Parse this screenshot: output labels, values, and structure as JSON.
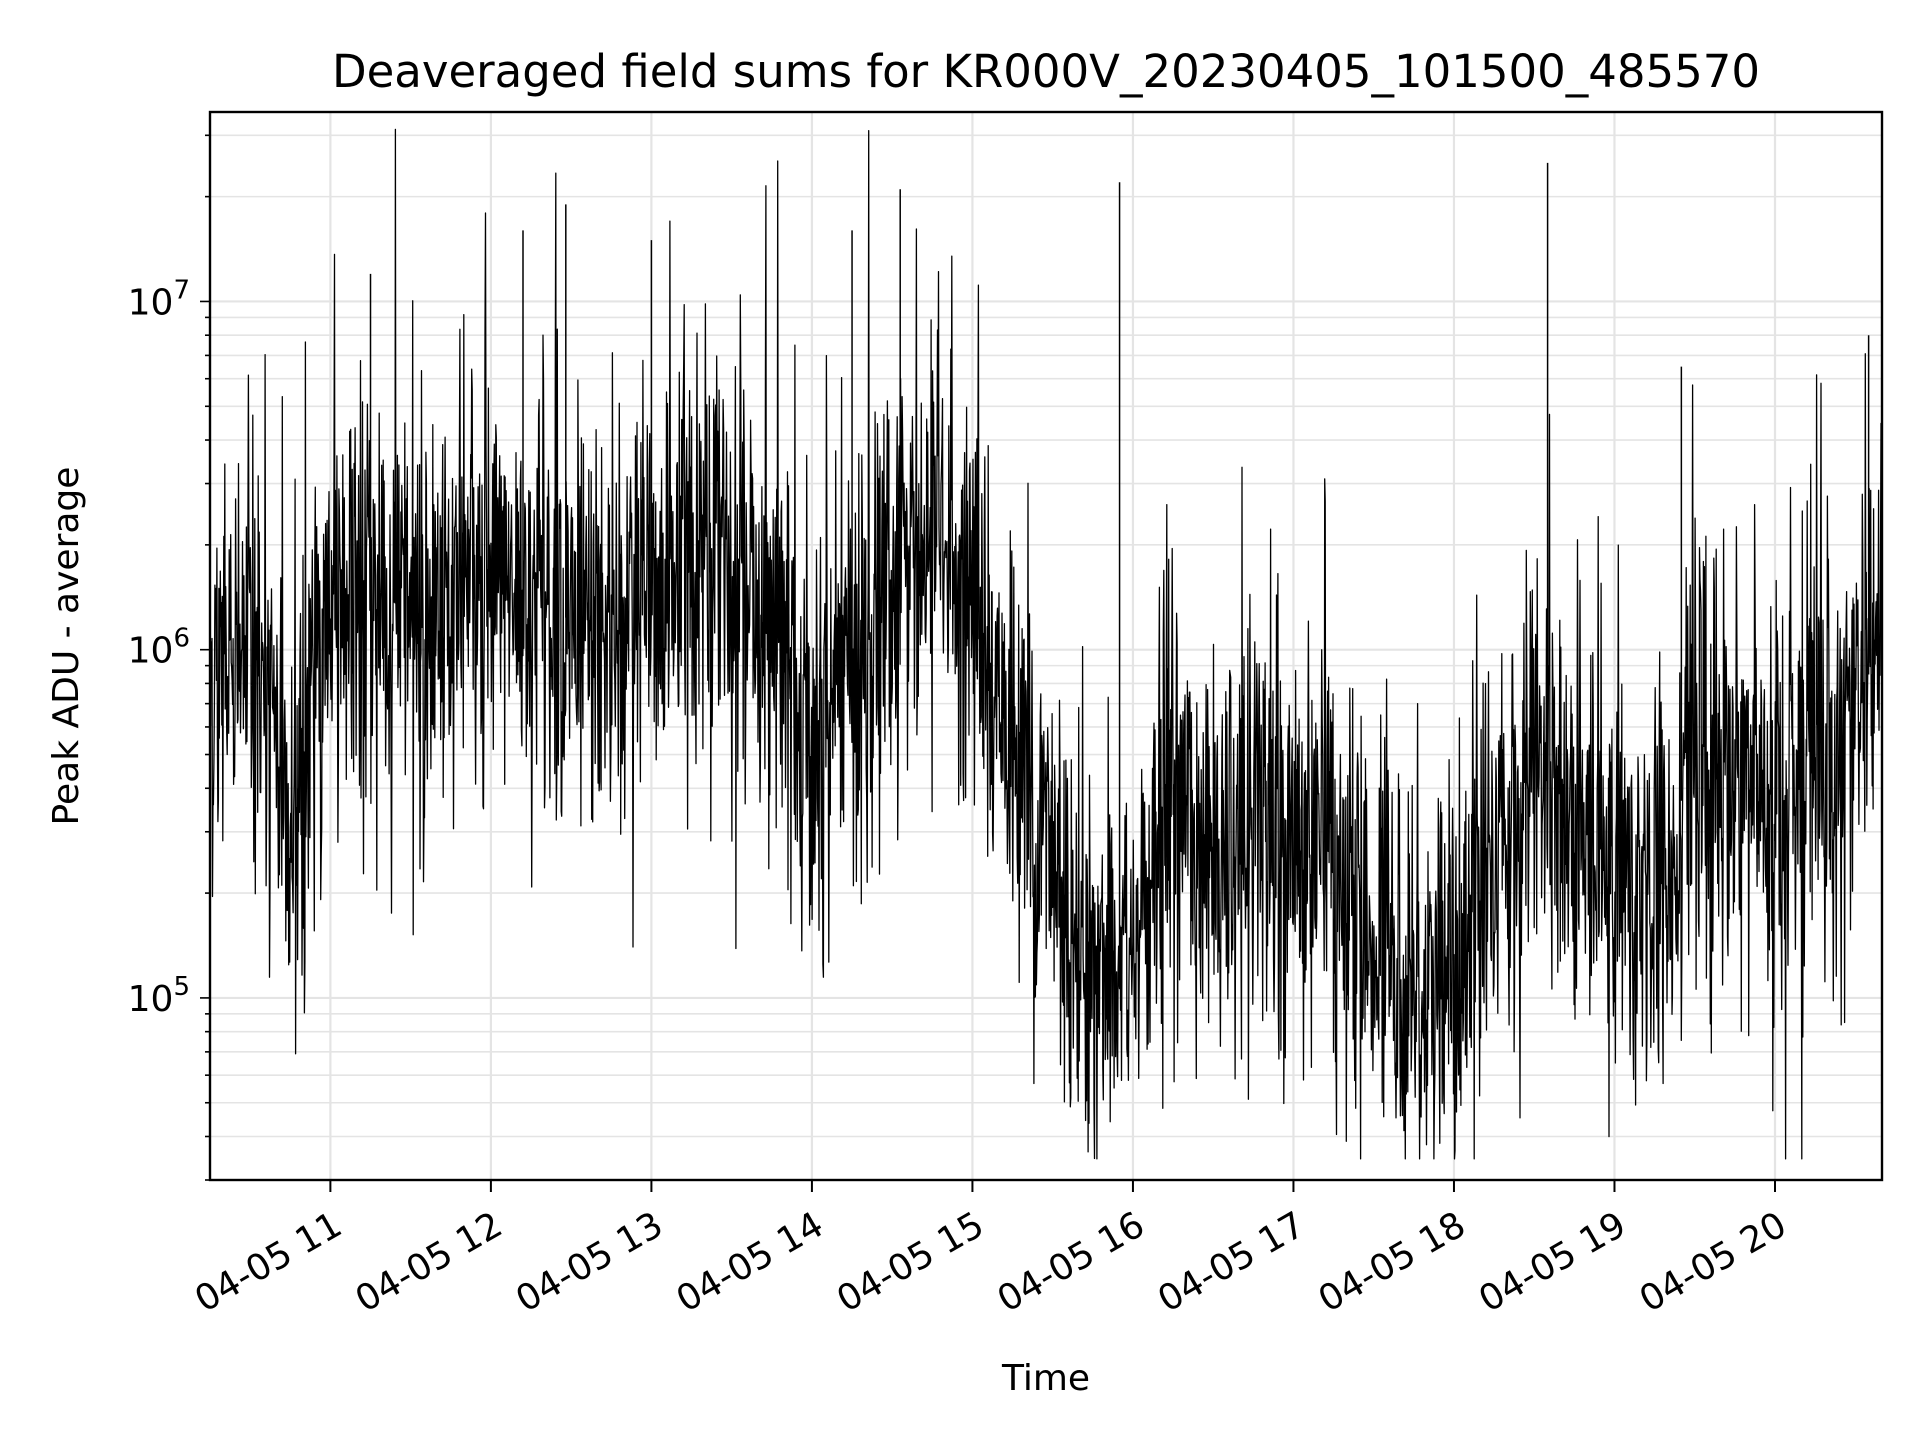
{
  "chart_data": {
    "type": "line",
    "title": "Deaveraged field sums for KR000V_20230405_101500_485570",
    "xlabel": "Time",
    "ylabel": "Peak ADU - average",
    "yscale": "log",
    "ylim": [
      30000,
      35000000
    ],
    "xlim": [
      "2023-04-05 10:15",
      "2023-04-05 20:40"
    ],
    "grid": true,
    "x_ticks": [
      {
        "value": "2023-04-05 11:00",
        "label": "04-05 11"
      },
      {
        "value": "2023-04-05 12:00",
        "label": "04-05 12"
      },
      {
        "value": "2023-04-05 13:00",
        "label": "04-05 13"
      },
      {
        "value": "2023-04-05 14:00",
        "label": "04-05 14"
      },
      {
        "value": "2023-04-05 15:00",
        "label": "04-05 15"
      },
      {
        "value": "2023-04-05 16:00",
        "label": "04-05 16"
      },
      {
        "value": "2023-04-05 17:00",
        "label": "04-05 17"
      },
      {
        "value": "2023-04-05 18:00",
        "label": "04-05 18"
      },
      {
        "value": "2023-04-05 19:00",
        "label": "04-05 19"
      },
      {
        "value": "2023-04-05 20:00",
        "label": "04-05 20"
      }
    ],
    "y_ticks": [
      {
        "value": 100000,
        "base": "10",
        "exp": "5"
      },
      {
        "value": 1000000,
        "base": "10",
        "exp": "6"
      },
      {
        "value": 10000000,
        "base": "10",
        "exp": "7"
      }
    ],
    "series": [
      {
        "color": "#000000",
        "x": [
          "2023-04-05 10:15",
          "2023-04-05 10:30",
          "2023-04-05 10:45",
          "2023-04-05 11:00",
          "2023-04-05 11:15",
          "2023-04-05 11:30",
          "2023-04-05 11:45",
          "2023-04-05 12:00",
          "2023-04-05 12:15",
          "2023-04-05 12:30",
          "2023-04-05 12:45",
          "2023-04-05 13:00",
          "2023-04-05 13:15",
          "2023-04-05 13:30",
          "2023-04-05 13:45",
          "2023-04-05 14:00",
          "2023-04-05 14:15",
          "2023-04-05 14:30",
          "2023-04-05 14:45",
          "2023-04-05 15:00",
          "2023-04-05 15:15",
          "2023-04-05 15:30",
          "2023-04-05 15:45",
          "2023-04-05 16:00",
          "2023-04-05 16:15",
          "2023-04-05 16:30",
          "2023-04-05 16:45",
          "2023-04-05 17:00",
          "2023-04-05 17:15",
          "2023-04-05 17:30",
          "2023-04-05 17:45",
          "2023-04-05 18:00",
          "2023-04-05 18:15",
          "2023-04-05 18:30",
          "2023-04-05 18:45",
          "2023-04-05 19:00",
          "2023-04-05 19:15",
          "2023-04-05 19:30",
          "2023-04-05 19:45",
          "2023-04-05 20:00",
          "2023-04-05 20:15",
          "2023-04-05 20:30",
          "2023-04-05 20:40"
        ],
        "y": [
          800000,
          1000000,
          300000,
          1500000,
          1300000,
          1200000,
          1300000,
          1400000,
          1500000,
          1200000,
          1100000,
          1500000,
          1500000,
          2000000,
          1000000,
          600000,
          900000,
          1400000,
          2000000,
          1500000,
          500000,
          250000,
          120000,
          130000,
          400000,
          250000,
          300000,
          300000,
          250000,
          150000,
          120000,
          100000,
          300000,
          400000,
          350000,
          220000,
          200000,
          500000,
          450000,
          350000,
          500000,
          600000,
          1200000
        ]
      }
    ],
    "spikes": [
      {
        "x": "2023-04-05 11:15",
        "y": 12000000
      },
      {
        "x": "2023-04-05 12:12",
        "y": 16000000
      },
      {
        "x": "2023-04-05 12:28",
        "y": 19000000
      },
      {
        "x": "2023-04-05 13:00",
        "y": 15000000
      },
      {
        "x": "2023-04-05 14:15",
        "y": 16000000
      },
      {
        "x": "2023-04-05 14:33",
        "y": 21000000
      },
      {
        "x": "2023-04-05 15:55",
        "y": 22000000
      },
      {
        "x": "2023-04-05 18:35",
        "y": 25000000
      },
      {
        "x": "2023-04-05 19:25",
        "y": 6500000
      },
      {
        "x": "2023-04-05 20:35",
        "y": 8000000
      }
    ]
  }
}
